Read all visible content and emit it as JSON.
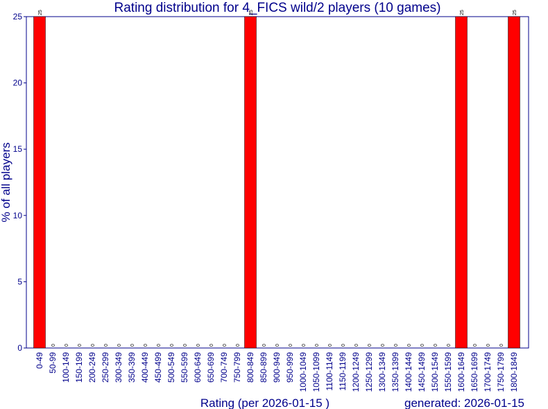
{
  "chart_data": {
    "type": "bar",
    "title": "Rating distribution for 4_FICS wild/2 players (10 games)",
    "x_label": "Rating (per 2026-01-15 )",
    "y_label": "% of all players",
    "annotation": "generated: 2026-01-15",
    "categories": [
      "0-49",
      "50-99",
      "100-149",
      "150-199",
      "200-249",
      "250-299",
      "300-349",
      "350-399",
      "400-449",
      "450-499",
      "500-549",
      "550-599",
      "600-649",
      "650-699",
      "700-749",
      "750-799",
      "800-849",
      "850-899",
      "900-949",
      "950-999",
      "1000-1049",
      "1050-1099",
      "1100-1149",
      "1150-1199",
      "1200-1249",
      "1250-1299",
      "1300-1349",
      "1350-1399",
      "1400-1449",
      "1450-1499",
      "1500-1549",
      "1550-1599",
      "1600-1649",
      "1650-1699",
      "1700-1749",
      "1750-1799",
      "1800-1849"
    ],
    "values": [
      25,
      0,
      0,
      0,
      0,
      0,
      0,
      0,
      0,
      0,
      0,
      0,
      0,
      0,
      0,
      0,
      25,
      0,
      0,
      0,
      0,
      0,
      0,
      0,
      0,
      0,
      0,
      0,
      0,
      0,
      0,
      0,
      25,
      0,
      0,
      0,
      25
    ],
    "color": "#ff0000",
    "ylim": [
      0,
      25
    ],
    "yticks": [
      0,
      5,
      10,
      15,
      20,
      25
    ],
    "grid": false
  }
}
